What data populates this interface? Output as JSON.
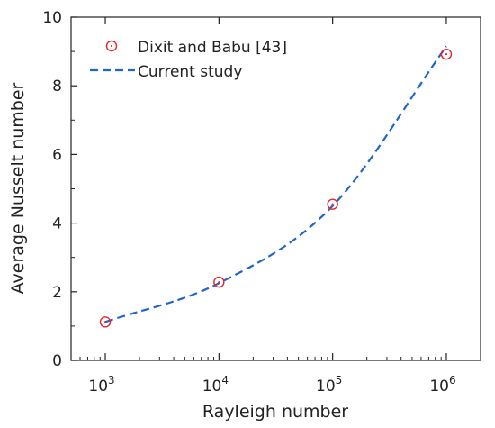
{
  "chart_data": {
    "type": "line",
    "xlabel": "Rayleigh number",
    "ylabel": "Average Nusselt number",
    "xscale": "log",
    "xlim": [
      500,
      2000000
    ],
    "ylim": [
      0,
      10
    ],
    "x_ticks": [
      {
        "value": 1000,
        "base": "10",
        "exp": "3"
      },
      {
        "value": 10000,
        "base": "10",
        "exp": "4"
      },
      {
        "value": 100000,
        "base": "10",
        "exp": "5"
      },
      {
        "value": 1000000,
        "base": "10",
        "exp": "6"
      }
    ],
    "y_ticks": [
      0,
      2,
      4,
      6,
      8,
      10
    ],
    "grid": false,
    "legend_position": "top-left",
    "series": [
      {
        "name": "Dixit and Babu [43]",
        "style": "markers",
        "color": "#e8262b",
        "x": [
          1000,
          10000,
          100000,
          1000000
        ],
        "y": [
          1.12,
          2.28,
          4.55,
          8.92
        ]
      },
      {
        "name": "Current study",
        "style": "dashed-line",
        "color": "#1f66c9",
        "x": [
          1000,
          10000,
          100000,
          1000000
        ],
        "y": [
          1.12,
          2.25,
          4.5,
          9.15
        ]
      }
    ]
  }
}
